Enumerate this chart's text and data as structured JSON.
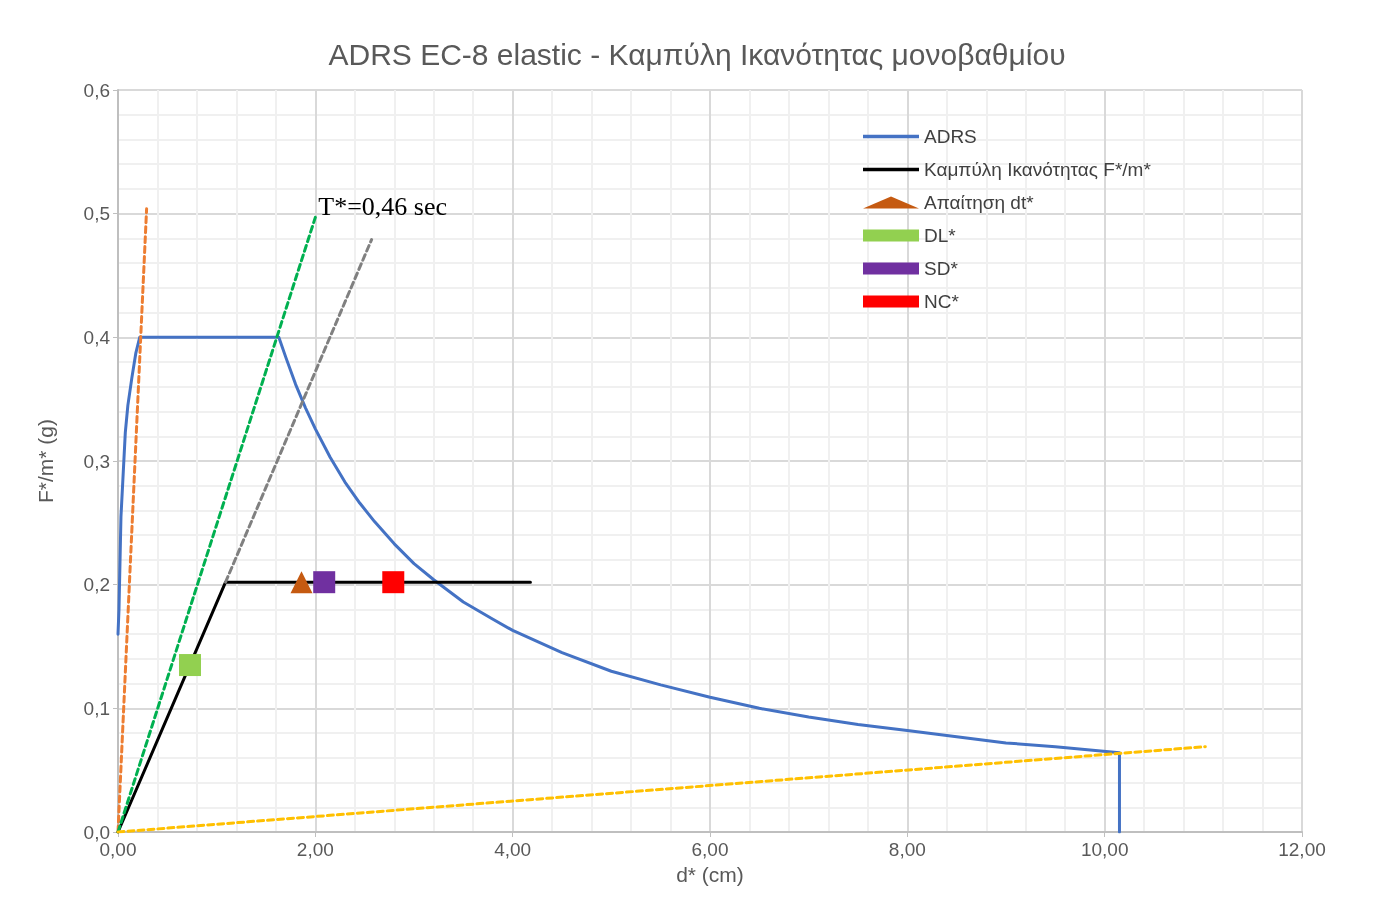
{
  "chart_data": {
    "type": "line",
    "title": "ADRS EC-8 elastic - Καμπύλη Ικανότητας μονοβαθμίου",
    "xlabel": "d* (cm)",
    "ylabel": "F*/m* (g)",
    "xlim": [
      0,
      12
    ],
    "xticks": [
      {
        "value": 0,
        "label": "0,00"
      },
      {
        "value": 2,
        "label": "2,00"
      },
      {
        "value": 4,
        "label": "4,00"
      },
      {
        "value": 6,
        "label": "6,00"
      },
      {
        "value": 8,
        "label": "8,00"
      },
      {
        "value": 10,
        "label": "10,00"
      },
      {
        "value": 12,
        "label": "12,00"
      }
    ],
    "ylim": [
      0,
      0.6
    ],
    "yticks": [
      {
        "value": 0,
        "label": "0,0"
      },
      {
        "value": 0.1,
        "label": "0,1"
      },
      {
        "value": 0.2,
        "label": "0,2"
      },
      {
        "value": 0.3,
        "label": "0,3"
      },
      {
        "value": 0.4,
        "label": "0,4"
      },
      {
        "value": 0.5,
        "label": "0,5"
      },
      {
        "value": 0.6,
        "label": "0,6"
      }
    ],
    "grid": true,
    "legend": "top right",
    "annotations": [
      {
        "text": "T*=0,46 sec",
        "x": 2.03,
        "y": 0.5
      }
    ],
    "series": [
      {
        "name": "ADRS",
        "color": "#4472c4",
        "line_style": "solid",
        "marker": "none",
        "x": [
          0,
          0.01,
          0.03,
          0.074,
          0.1,
          0.14,
          0.18,
          0.22,
          1.63,
          1.7,
          1.8,
          1.9,
          2.0,
          2.15,
          2.3,
          2.45,
          2.6,
          2.8,
          3.0,
          3.2,
          3.5,
          3.8,
          4.0,
          4.5,
          5.0,
          5.5,
          6.0,
          6.5,
          7.0,
          7.5,
          8.0,
          8.5,
          9.0,
          9.5,
          10.15,
          10.15
        ],
        "values": [
          0.16,
          0.18,
          0.255,
          0.323,
          0.345,
          0.367,
          0.387,
          0.4,
          0.4,
          0.384,
          0.362,
          0.343,
          0.326,
          0.303,
          0.283,
          0.266,
          0.251,
          0.233,
          0.217,
          0.204,
          0.186,
          0.172,
          0.163,
          0.145,
          0.13,
          0.119,
          0.109,
          0.1,
          0.093,
          0.087,
          0.082,
          0.077,
          0.072,
          0.069,
          0.064,
          0
        ]
      },
      {
        "name": "Καμπύλη Ικανότητας F*/m*",
        "color": "#000000",
        "line_style": "solid",
        "marker": "none",
        "x": [
          0,
          1.09,
          4.18
        ],
        "values": [
          0,
          0.202,
          0.202
        ]
      },
      {
        "name": "Απαίτηση dt*",
        "type": "scatter",
        "color": "#c55a11",
        "marker": "triangle",
        "x": [
          1.86
        ],
        "values": [
          0.202
        ]
      },
      {
        "name": "DL*",
        "type": "scatter",
        "color": "#92d050",
        "marker": "square",
        "x": [
          0.73
        ],
        "values": [
          0.135
        ]
      },
      {
        "name": "SD*",
        "type": "scatter",
        "color": "#7030a0",
        "marker": "square",
        "x": [
          2.09
        ],
        "values": [
          0.202
        ]
      },
      {
        "name": "NC*",
        "type": "scatter",
        "color": "#ff0000",
        "marker": "square",
        "x": [
          2.79
        ],
        "values": [
          0.202
        ]
      },
      {
        "color": "#ed7d31",
        "line_style": "dashed",
        "marker": "none",
        "x": [
          0,
          0.29
        ],
        "values": [
          0,
          0.504
        ]
      },
      {
        "color": "#00b050",
        "line_style": "dashed",
        "marker": "none",
        "x": [
          0,
          2.0
        ],
        "values": [
          0,
          0.497
        ]
      },
      {
        "color": "#808080",
        "line_style": "dashed",
        "marker": "none",
        "x": [
          1.09,
          2.57
        ],
        "values": [
          0.202,
          0.479
        ]
      },
      {
        "color": "#ffc000",
        "line_style": "dashed",
        "marker": "none",
        "x": [
          0,
          11.02
        ],
        "values": [
          0,
          0.069
        ]
      }
    ]
  }
}
